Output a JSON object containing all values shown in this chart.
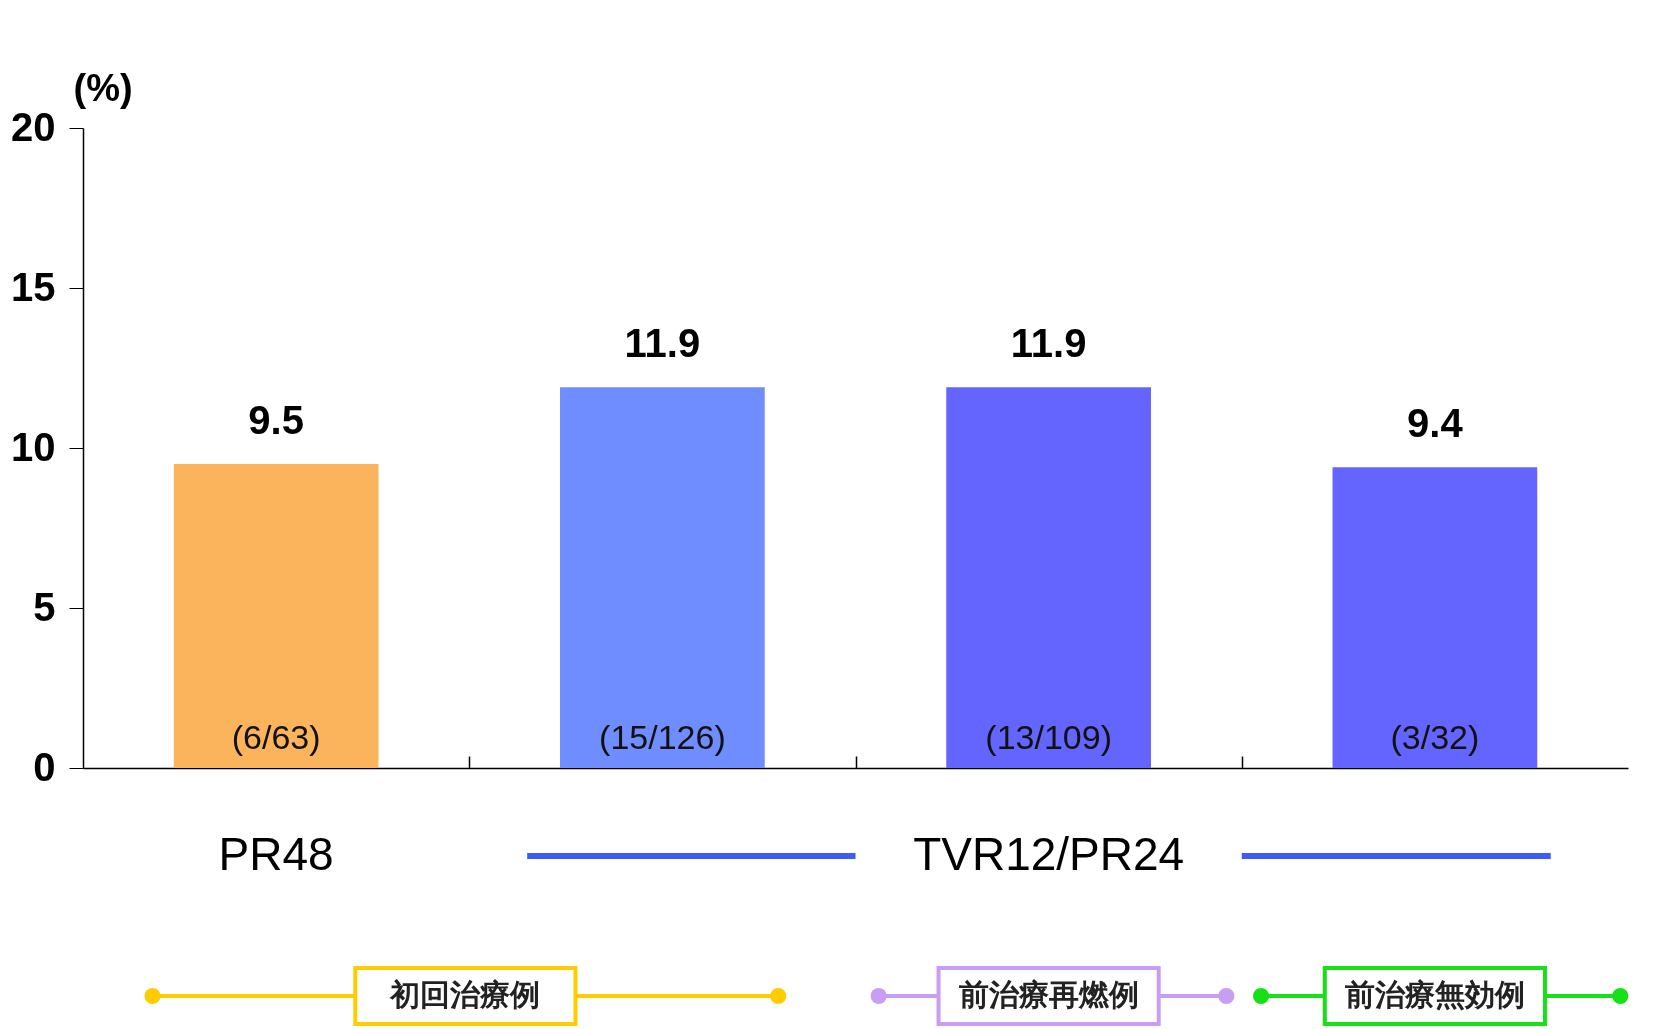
{
  "chart_data": {
    "type": "bar",
    "ylabel": "(%)",
    "categories": [
      null,
      null,
      null,
      null
    ],
    "values": [
      9.5,
      11.9,
      11.9,
      9.4
    ],
    "colors": [
      "#fbb45c",
      "#6f8dff",
      "#6464ff",
      "#6464ff"
    ],
    "ylim": [
      0,
      20
    ],
    "yticks": [
      0,
      5,
      10,
      15,
      20
    ],
    "grid": false,
    "data_labels": true,
    "annotations": [
      "(6/63)",
      "(15/126)",
      "(13/109)",
      "(3/32)",
      "PR48",
      "TVR12/PR24",
      "初回治療例",
      "前治療再燃例",
      "前治療無効例"
    ]
  }
}
